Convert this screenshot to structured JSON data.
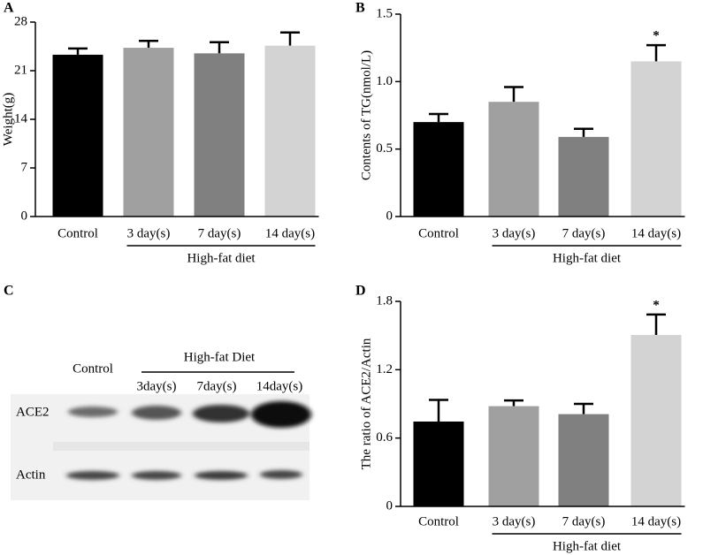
{
  "chart_data": [
    {
      "panel": "A",
      "type": "bar",
      "ylabel": "Weight(g)",
      "categories": [
        "Control",
        "3 day(s)",
        "7 day(s)",
        "14 day(s)"
      ],
      "values": [
        23.3,
        24.3,
        23.5,
        24.6
      ],
      "errors": [
        0.9,
        1.0,
        1.6,
        1.9
      ],
      "colors": [
        "#000000",
        "#a0a0a0",
        "#808080",
        "#d3d3d3"
      ],
      "ylim": [
        0,
        28
      ],
      "yticks": [
        0,
        7,
        14,
        21,
        28
      ],
      "group": {
        "label": "High-fat diet",
        "from": "3 day(s)",
        "to": "14 day(s)"
      }
    },
    {
      "panel": "B",
      "type": "bar",
      "ylabel": "Contents of TG(nmol/L)",
      "categories": [
        "Control",
        "3 day(s)",
        "7 day(s)",
        "14 day(s)"
      ],
      "values": [
        0.7,
        0.85,
        0.59,
        1.15
      ],
      "errors": [
        0.06,
        0.11,
        0.06,
        0.12
      ],
      "colors": [
        "#000000",
        "#a0a0a0",
        "#808080",
        "#d3d3d3"
      ],
      "ylim": [
        0,
        1.5
      ],
      "yticks": [
        0,
        0.5,
        {
          "value": 1,
          "label": "1.0"
        },
        1.5
      ],
      "group": {
        "label": "High-fat  diet",
        "from": "3 day(s)",
        "to": "14 day(s)"
      },
      "annotations": [
        {
          "text": "*",
          "category": "14 day(s)"
        }
      ]
    },
    {
      "panel": "D",
      "type": "bar",
      "ylabel": "The ratio of ACE2/Actin",
      "categories": [
        "Control",
        "3 day(s)",
        "7 day(s)",
        "14 day(s)"
      ],
      "values": [
        0.745,
        0.88,
        0.81,
        1.505
      ],
      "errors": [
        0.19,
        0.05,
        0.09,
        0.18
      ],
      "colors": [
        "#000000",
        "#a0a0a0",
        "#808080",
        "#d3d3d3"
      ],
      "ylim": [
        0,
        1.8
      ],
      "yticks": [
        0,
        0.6,
        1.2,
        1.8
      ],
      "group": {
        "label": "High-fat  diet",
        "from": "3 day(s)",
        "to": "14 day(s)"
      },
      "annotations": [
        {
          "text": "*",
          "category": "14 day(s)"
        }
      ]
    }
  ],
  "blot": {
    "panel": "C",
    "control_label": "Control",
    "group_label": "High-fat  Diet",
    "lanes": [
      "3day(s)",
      "7day(s)",
      "14day(s)"
    ],
    "rows": [
      "ACE2",
      "Actin"
    ]
  }
}
